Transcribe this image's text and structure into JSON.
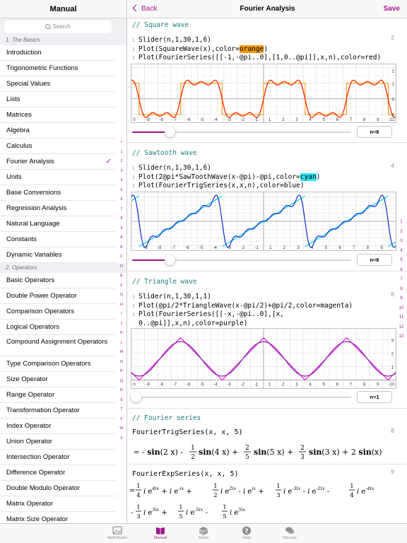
{
  "sidebar": {
    "title": "Manual",
    "search_placeholder": "Search",
    "section1": "1. The Basics",
    "items1": [
      "Introduction",
      "Trigonometric Functions",
      "Special Values",
      "Lists",
      "Matrices",
      "Algebra",
      "Calculus",
      "Fourier Analysis",
      "Units",
      "Base Conversions",
      "Regression Analysis",
      "Natural Language",
      "Constants",
      "Dynamic Variables"
    ],
    "section2": "2. Operators",
    "items2": [
      "Basic Operators",
      "Double Power Operator",
      "Comparison Operators",
      "Logical Operators",
      "Compound Assignment Operators",
      "Type Comparison Operators",
      "Size Operator",
      "Range Operator",
      "Transformation Operator",
      "Index Operator",
      "Union Operator",
      "Intersection Operator",
      "Difference Operator",
      "Double Modulo Operator",
      "Matrix Operator",
      "Matrix Size Operator"
    ],
    "selected": "Fourier Analysis",
    "index": [
      "☆",
      "1",
      "2",
      "3",
      "4",
      "5",
      "6",
      "7",
      "8",
      "9",
      "A",
      "B",
      "C",
      "D",
      "E",
      "F",
      "G",
      "H",
      "I",
      "J",
      "K",
      "L",
      "M",
      "N",
      "P",
      "Q",
      "R",
      "S",
      "T",
      "V",
      "W",
      "Z"
    ]
  },
  "nav": {
    "back_label": "Back",
    "title": "Fourier Analysis",
    "save_label": "Save"
  },
  "right_index": [
    "1",
    "2",
    "3",
    "4",
    "5",
    "6",
    "7",
    "8",
    "9",
    "10",
    "11",
    "12",
    "13"
  ],
  "cells": {
    "square": {
      "comment": "// Square wave",
      "cell_no": "2",
      "line1": "Slider(n,1,30,1,6)",
      "line2a": "Plot(SquareWave(x),color=",
      "line2b": "orange",
      "line2c": ")",
      "line3": "Plot(FourierSeries([[-1,-@pi..0],[1,0..@pi]],x,n),color=red)",
      "slider_value": "n=6",
      "slider_fraction": 0.172,
      "plot": {
        "xmin": -10,
        "xmax": 10,
        "ymin": -2,
        "ymax": 2,
        "ylabels": [
          "2",
          "1",
          "0",
          "-1"
        ],
        "xlabels": [
          "0",
          "-9",
          "-8",
          "-7",
          "-6",
          "-5",
          "-4",
          "-3",
          "-2",
          "-1",
          "1",
          "2",
          "3",
          "4",
          "5",
          "6",
          "7",
          "8",
          "9",
          "-21"
        ],
        "line_color": "#ff2a00",
        "sq_color": "#f39c12"
      }
    },
    "saw": {
      "comment": "// Sawtooth wave",
      "cell_no": "4",
      "line1": "Slider(n,1,30,1,6)",
      "line2a": "Plot(2@pi*SawToothWave(x-@pi)-@pi,color=",
      "line2b": "cyan",
      "line2c": ")",
      "line3": "Plot(FourierTrigSeries(x,x,n),color=blue)",
      "slider_value": "n=6",
      "slider_fraction": 0.172,
      "plot": {
        "xlabels": [
          "-9",
          "-8",
          "-7",
          "-6",
          "-5",
          "-4",
          "-3",
          "-2",
          "-1",
          "1",
          "2",
          "3",
          "4",
          "5",
          "6",
          "7",
          "8",
          "9"
        ]
      }
    },
    "tri": {
      "comment": "// Triangle wave",
      "cell_no": "6",
      "line1": "Slider(n,1,30,1,1)",
      "line2": "Plot(@pi/2*TriangleWave(x-@pi/2)+@pi/2,color=magenta)",
      "line3": "Plot(FourierSeries([[-x,-@pi..0],[x,",
      "line4": "0..@pi]],x,n),color=purple)",
      "slider_value": "n=1",
      "slider_fraction": 0.0,
      "plot": {
        "ylabels": [
          "3",
          "2",
          "1"
        ],
        "xlabels": [
          "0",
          "-9",
          "-8",
          "-7",
          "-6",
          "-5",
          "-4",
          "-3",
          "-2",
          "-1",
          "1",
          "2",
          "3",
          "4",
          "5",
          "6",
          "7",
          "8",
          "9",
          "-10"
        ]
      }
    },
    "fourier": {
      "comment": "// Fourier series",
      "cell8_no": "8",
      "cell8_input": "FourierTrigSeries(x, x, 5)",
      "cell9_no": "9",
      "cell9_input": "FourierExpSeries(x, x, 5)"
    }
  },
  "tabs": [
    {
      "label": "MathStudio",
      "icon": "image-icon"
    },
    {
      "label": "Manual",
      "icon": "book-icon"
    },
    {
      "label": "Share",
      "icon": "share-icon"
    },
    {
      "label": "Help",
      "icon": "help-icon"
    },
    {
      "label": "Discuss",
      "icon": "discuss-icon"
    }
  ],
  "active_tab": "Manual"
}
